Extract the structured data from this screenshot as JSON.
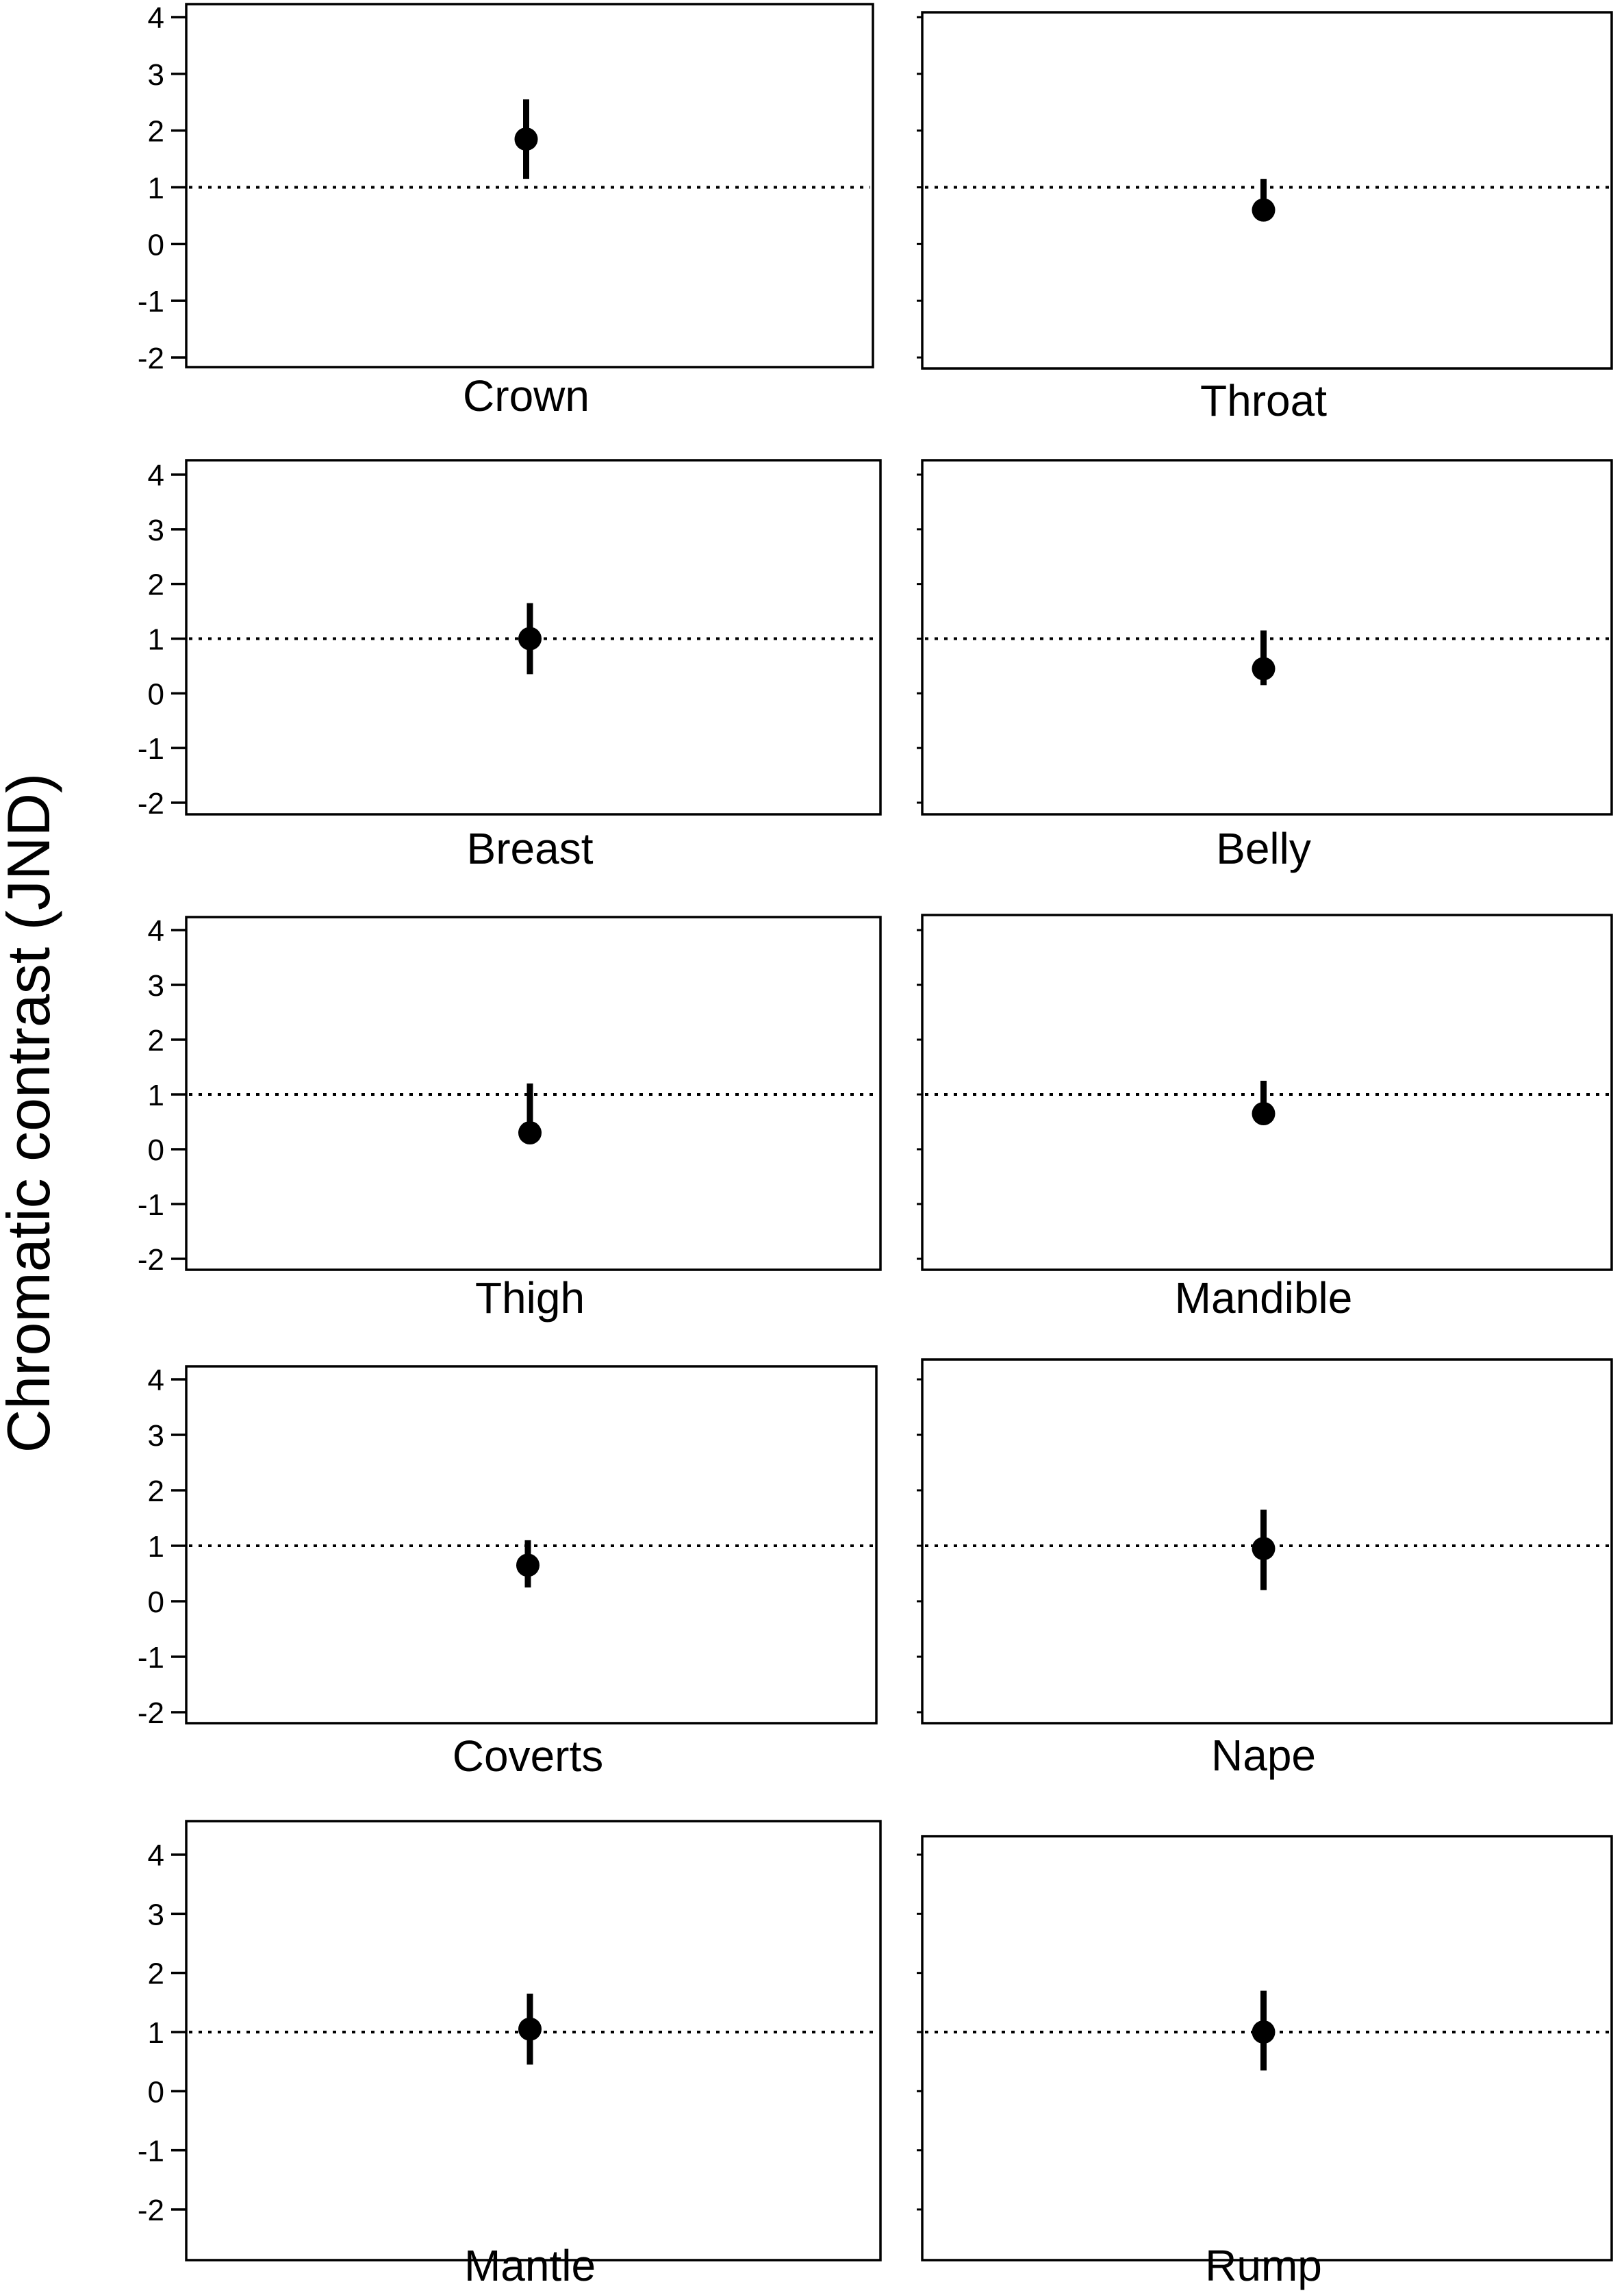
{
  "chart_data": {
    "type": "scatter",
    "ylabel": "Chromatic contrast (JND)",
    "ylim": [
      -2,
      4
    ],
    "yticks": [
      4,
      3,
      2,
      1,
      0,
      -1,
      -2
    ],
    "reference_line": 1,
    "grid": false,
    "panels": [
      {
        "label": "Crown",
        "mean": 1.85,
        "lower": 1.15,
        "upper": 2.55
      },
      {
        "label": "Throat",
        "mean": 0.6,
        "lower": 0.45,
        "upper": 1.15
      },
      {
        "label": "Breast",
        "mean": 1.0,
        "lower": 0.35,
        "upper": 1.65
      },
      {
        "label": "Belly",
        "mean": 0.45,
        "lower": 0.15,
        "upper": 1.15
      },
      {
        "label": "Thigh",
        "mean": 0.3,
        "lower": 0.25,
        "upper": 1.2
      },
      {
        "label": "Mandible",
        "mean": 0.65,
        "lower": 0.5,
        "upper": 1.25
      },
      {
        "label": "Coverts",
        "mean": 0.65,
        "lower": 0.25,
        "upper": 1.1
      },
      {
        "label": "Nape",
        "mean": 0.95,
        "lower": 0.2,
        "upper": 1.65
      },
      {
        "label": "Mantle",
        "mean": 1.05,
        "lower": 0.45,
        "upper": 1.65
      },
      {
        "label": "Rump",
        "mean": 1.0,
        "lower": 0.35,
        "upper": 1.7
      }
    ]
  }
}
